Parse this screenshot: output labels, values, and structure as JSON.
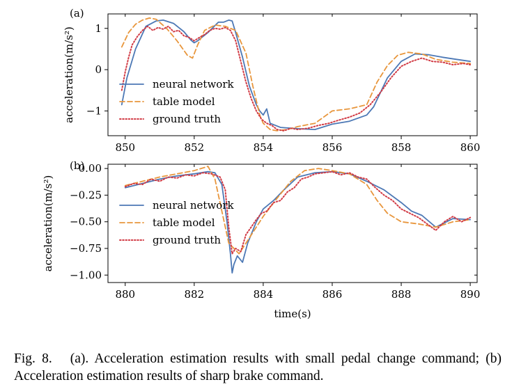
{
  "chart_data": [
    {
      "type": "line",
      "panel_label": "(a)",
      "ylabel": "acceleration(m/s²)",
      "xlabel": "",
      "xlim": [
        849.5,
        860.2
      ],
      "ylim": [
        -1.6,
        1.35
      ],
      "xticks": [
        850,
        852,
        854,
        856,
        858,
        860
      ],
      "yticks": [
        1,
        0,
        -1
      ],
      "ytick_labels": [
        "1",
        "0",
        "−1"
      ],
      "grid": false,
      "legend_position": "lower-left",
      "series": [
        {
          "name": "neural network",
          "color": "#4c78b5",
          "style": "solid",
          "x": [
            849.9,
            850.05,
            850.3,
            850.6,
            850.9,
            851.1,
            851.4,
            851.7,
            851.9,
            852.0,
            852.1,
            852.4,
            852.7,
            852.85,
            853.0,
            853.1,
            853.2,
            853.4,
            853.6,
            853.8,
            853.9,
            854.0,
            854.1,
            854.2,
            854.5,
            855.0,
            855.5,
            856.0,
            856.5,
            857.0,
            857.2,
            857.6,
            858.0,
            858.4,
            858.8,
            859.2,
            859.6,
            860.0
          ],
          "y": [
            -0.85,
            -0.2,
            0.5,
            1.05,
            1.18,
            1.2,
            1.12,
            0.92,
            0.72,
            0.65,
            0.7,
            0.9,
            1.15,
            1.15,
            1.2,
            1.18,
            0.9,
            0.3,
            -0.4,
            -0.85,
            -1.0,
            -1.1,
            -0.95,
            -1.3,
            -1.4,
            -1.43,
            -1.45,
            -1.32,
            -1.25,
            -1.1,
            -0.9,
            -0.2,
            0.2,
            0.38,
            0.36,
            0.3,
            0.25,
            0.2
          ]
        },
        {
          "name": "table model",
          "color": "#e8963c",
          "style": "dashed",
          "x": [
            849.9,
            850.1,
            850.3,
            850.5,
            850.7,
            850.9,
            851.2,
            851.5,
            851.8,
            851.95,
            852.1,
            852.3,
            852.6,
            852.9,
            853.2,
            853.5,
            853.7,
            853.9,
            854.0,
            854.2,
            854.4,
            854.7,
            855.0,
            855.5,
            856.0,
            856.5,
            857.0,
            857.3,
            857.6,
            857.9,
            858.2,
            858.6,
            859.0,
            859.5,
            860.0
          ],
          "y": [
            0.55,
            0.9,
            1.1,
            1.2,
            1.25,
            1.22,
            1.0,
            0.7,
            0.35,
            0.28,
            0.6,
            0.95,
            1.08,
            1.05,
            0.95,
            0.4,
            -0.4,
            -1.1,
            -1.3,
            -1.45,
            -1.48,
            -1.45,
            -1.38,
            -1.3,
            -1.0,
            -0.95,
            -0.85,
            -0.3,
            0.1,
            0.35,
            0.42,
            0.38,
            0.25,
            0.18,
            0.15
          ]
        },
        {
          "name": "ground truth",
          "color": "#d13b45",
          "style": "dotted",
          "x": [
            849.9,
            850.0,
            850.1,
            850.2,
            850.35,
            850.5,
            850.65,
            850.8,
            850.95,
            851.1,
            851.25,
            851.4,
            851.55,
            851.7,
            851.85,
            852.0,
            852.15,
            852.3,
            852.45,
            852.6,
            852.75,
            852.9,
            853.05,
            853.2,
            853.35,
            853.5,
            853.65,
            853.8,
            853.95,
            854.1,
            854.25,
            854.4,
            854.6,
            854.8,
            855.0,
            855.3,
            855.6,
            855.9,
            856.2,
            856.5,
            856.8,
            857.1,
            857.4,
            857.7,
            858.0,
            858.3,
            858.6,
            858.9,
            859.2,
            859.5,
            859.8,
            860.0
          ],
          "y": [
            -0.5,
            -0.05,
            0.3,
            0.6,
            0.8,
            0.95,
            1.05,
            0.95,
            1.02,
            0.98,
            1.05,
            0.92,
            0.95,
            0.82,
            0.78,
            0.7,
            0.78,
            0.85,
            0.95,
            1.0,
            0.98,
            1.02,
            0.95,
            0.7,
            0.2,
            -0.3,
            -0.7,
            -1.0,
            -1.2,
            -1.3,
            -1.35,
            -1.45,
            -1.48,
            -1.42,
            -1.45,
            -1.42,
            -1.35,
            -1.3,
            -1.22,
            -1.15,
            -1.05,
            -0.85,
            -0.55,
            -0.2,
            0.08,
            0.2,
            0.28,
            0.2,
            0.18,
            0.12,
            0.15,
            0.12
          ]
        }
      ]
    },
    {
      "type": "line",
      "panel_label": "(b)",
      "ylabel": "acceleration(m/s²)",
      "xlabel": "time(s)",
      "xlim": [
        879.5,
        890.2
      ],
      "ylim": [
        -1.07,
        0.04
      ],
      "xticks": [
        880,
        882,
        884,
        886,
        888,
        890
      ],
      "yticks": [
        0,
        -0.25,
        -0.5,
        -0.75,
        -1.0
      ],
      "ytick_labels": [
        "0.00",
        "−0.25",
        "−0.50",
        "−0.75",
        "−1.00"
      ],
      "grid": false,
      "legend_position": "lower-left",
      "series": [
        {
          "name": "neural network",
          "color": "#4c78b5",
          "style": "solid",
          "x": [
            880.0,
            880.5,
            881.0,
            881.5,
            882.0,
            882.4,
            882.6,
            882.8,
            882.95,
            883.05,
            883.1,
            883.15,
            883.25,
            883.4,
            883.55,
            883.8,
            884.0,
            884.3,
            884.6,
            885.0,
            885.5,
            886.0,
            886.5,
            887.0,
            887.5,
            888.0,
            888.3,
            888.6,
            889.0,
            889.5,
            890.0
          ],
          "y": [
            -0.18,
            -0.14,
            -0.1,
            -0.07,
            -0.05,
            -0.03,
            -0.04,
            -0.15,
            -0.5,
            -0.8,
            -0.98,
            -0.9,
            -0.82,
            -0.88,
            -0.7,
            -0.5,
            -0.38,
            -0.3,
            -0.2,
            -0.08,
            -0.04,
            -0.03,
            -0.05,
            -0.12,
            -0.2,
            -0.32,
            -0.4,
            -0.44,
            -0.55,
            -0.47,
            -0.48
          ]
        },
        {
          "name": "table model",
          "color": "#e8963c",
          "style": "dashed",
          "x": [
            880.0,
            880.5,
            881.0,
            881.5,
            882.0,
            882.4,
            882.6,
            882.8,
            883.0,
            883.3,
            883.6,
            884.0,
            884.4,
            884.8,
            885.2,
            885.6,
            886.0,
            886.5,
            887.0,
            887.3,
            887.6,
            888.0,
            888.5,
            889.0,
            889.5,
            890.0
          ],
          "y": [
            -0.16,
            -0.12,
            -0.08,
            -0.05,
            -0.02,
            0.02,
            -0.1,
            -0.4,
            -0.7,
            -0.8,
            -0.65,
            -0.45,
            -0.28,
            -0.12,
            -0.02,
            0.0,
            -0.02,
            -0.05,
            -0.15,
            -0.3,
            -0.42,
            -0.5,
            -0.52,
            -0.55,
            -0.5,
            -0.48
          ]
        },
        {
          "name": "ground truth",
          "color": "#d13b45",
          "style": "dotted",
          "x": [
            880.0,
            880.25,
            880.5,
            880.75,
            881.0,
            881.25,
            881.5,
            881.75,
            882.0,
            882.25,
            882.5,
            882.75,
            882.9,
            883.0,
            883.1,
            883.2,
            883.35,
            883.5,
            883.65,
            883.8,
            883.95,
            884.1,
            884.3,
            884.5,
            884.7,
            884.9,
            885.1,
            885.3,
            885.5,
            885.75,
            886.0,
            886.25,
            886.5,
            886.75,
            887.0,
            887.25,
            887.5,
            887.75,
            888.0,
            888.25,
            888.5,
            888.75,
            889.0,
            889.25,
            889.5,
            889.75,
            890.0
          ],
          "y": [
            -0.17,
            -0.14,
            -0.15,
            -0.1,
            -0.12,
            -0.08,
            -0.09,
            -0.06,
            -0.07,
            -0.04,
            -0.05,
            -0.08,
            -0.2,
            -0.55,
            -0.8,
            -0.75,
            -0.78,
            -0.62,
            -0.55,
            -0.48,
            -0.42,
            -0.4,
            -0.32,
            -0.3,
            -0.22,
            -0.18,
            -0.1,
            -0.08,
            -0.05,
            -0.04,
            -0.03,
            -0.06,
            -0.04,
            -0.08,
            -0.1,
            -0.18,
            -0.25,
            -0.3,
            -0.38,
            -0.42,
            -0.46,
            -0.52,
            -0.58,
            -0.5,
            -0.45,
            -0.5,
            -0.46
          ]
        }
      ]
    }
  ],
  "caption": {
    "label": "Fig. 8.",
    "text": "(a). Acceleration estimation results with small pedal change command; (b) Acceleration estimation results of sharp brake command."
  }
}
